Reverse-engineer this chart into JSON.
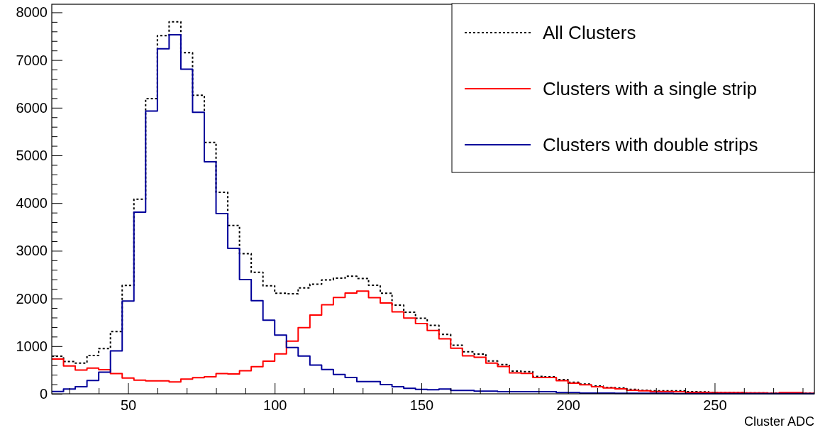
{
  "chart_data": {
    "type": "histogram",
    "xlabel": "Cluster ADC",
    "bins": [
      24,
      28,
      32,
      36,
      40,
      44,
      48,
      52,
      56,
      60,
      64,
      68,
      72,
      76,
      80,
      84,
      88,
      92,
      96,
      100,
      104,
      108,
      112,
      116,
      120,
      124,
      128,
      132,
      136,
      140,
      144,
      148,
      152,
      156,
      160,
      164,
      168,
      172,
      176,
      180,
      184,
      188,
      192,
      196,
      200,
      204,
      208,
      212,
      216,
      220,
      224,
      228,
      232,
      236,
      240,
      244,
      248,
      252,
      256,
      260,
      264,
      268,
      272,
      276,
      280,
      284
    ],
    "series": [
      {
        "name": "All Clusters",
        "color": "#000000",
        "line_style": "dotted",
        "values": [
          787,
          678,
          643,
          802,
          950,
          1307,
          2272,
          4080,
          6190,
          7510,
          7800,
          7156,
          6260,
          5270,
          4226,
          3530,
          2940,
          2550,
          2267,
          2110,
          2100,
          2220,
          2300,
          2390,
          2425,
          2465,
          2420,
          2277,
          2110,
          1860,
          1713,
          1584,
          1435,
          1247,
          1020,
          881,
          832,
          688,
          614,
          475,
          465,
          366,
          356,
          297,
          240,
          203,
          163,
          134,
          124,
          94,
          74,
          64,
          64,
          64,
          45,
          40,
          30,
          25,
          25,
          20,
          20,
          15,
          15,
          15,
          15
        ]
      },
      {
        "name": "Clusters with a single strip",
        "color": "#ff0000",
        "line_style": "solid",
        "values": [
          728,
          584,
          500,
          540,
          505,
          425,
          332,
          287,
          272,
          272,
          248,
          307,
          337,
          356,
          425,
          416,
          485,
          569,
          683,
          837,
          1104,
          1386,
          1653,
          1866,
          2020,
          2114,
          2153,
          2015,
          1906,
          1718,
          1589,
          1475,
          1327,
          1153,
          955,
          797,
          767,
          643,
          574,
          440,
          426,
          342,
          342,
          277,
          223,
          188,
          149,
          124,
          104,
          74,
          64,
          50,
          50,
          45,
          30,
          30,
          25,
          25,
          25,
          20,
          20,
          10,
          25,
          25,
          10
        ]
      },
      {
        "name": "Clusters with double strips",
        "color": "#00009a",
        "line_style": "solid",
        "values": [
          50,
          100,
          150,
          280,
          455,
          900,
          1945,
          3810,
          5930,
          7236,
          7530,
          6810,
          5905,
          4865,
          3780,
          3050,
          2395,
          1955,
          1545,
          1233,
          970,
          792,
          604,
          510,
          406,
          342,
          257,
          257,
          193,
          149,
          114,
          94,
          84,
          99,
          69,
          69,
          54,
          54,
          45,
          45,
          45,
          45,
          45,
          25,
          25,
          15,
          15,
          15,
          10,
          10,
          10,
          10,
          10,
          5,
          5,
          5,
          5,
          5,
          5,
          5,
          5,
          5,
          5,
          5,
          5
        ]
      }
    ],
    "xlim": [
      24,
      284
    ],
    "xticks": [
      {
        "value": 30,
        "label": null
      },
      {
        "value": 40,
        "label": null
      },
      50,
      {
        "value": 60,
        "label": null
      },
      {
        "value": 70,
        "label": null
      },
      {
        "value": 80,
        "label": null
      },
      {
        "value": 90,
        "label": null
      },
      100,
      {
        "value": 110,
        "label": null
      },
      {
        "value": 120,
        "label": null
      },
      {
        "value": 130,
        "label": null
      },
      {
        "value": 140,
        "label": null
      },
      150,
      {
        "value": 160,
        "label": null
      },
      {
        "value": 170,
        "label": null
      },
      {
        "value": 180,
        "label": null
      },
      {
        "value": 190,
        "label": null
      },
      200,
      {
        "value": 210,
        "label": null
      },
      {
        "value": 220,
        "label": null
      },
      {
        "value": 230,
        "label": null
      },
      {
        "value": 240,
        "label": null
      },
      250,
      {
        "value": 260,
        "label": null
      },
      {
        "value": 270,
        "label": null
      },
      {
        "value": 280,
        "label": null
      }
    ],
    "ylim": [
      0,
      8170
    ],
    "yticks": [
      0,
      {
        "value": 200,
        "label": null
      },
      {
        "value": 400,
        "label": null
      },
      {
        "value": 600,
        "label": null
      },
      {
        "value": 800,
        "label": null
      },
      1000,
      {
        "value": 1200,
        "label": null
      },
      {
        "value": 1400,
        "label": null
      },
      {
        "value": 1600,
        "label": null
      },
      {
        "value": 1800,
        "label": null
      },
      2000,
      {
        "value": 2200,
        "label": null
      },
      {
        "value": 2400,
        "label": null
      },
      {
        "value": 2600,
        "label": null
      },
      {
        "value": 2800,
        "label": null
      },
      3000,
      {
        "value": 3200,
        "label": null
      },
      {
        "value": 3400,
        "label": null
      },
      {
        "value": 3600,
        "label": null
      },
      {
        "value": 3800,
        "label": null
      },
      4000,
      {
        "value": 4200,
        "label": null
      },
      {
        "value": 4400,
        "label": null
      },
      {
        "value": 4600,
        "label": null
      },
      {
        "value": 4800,
        "label": null
      },
      5000,
      {
        "value": 5200,
        "label": null
      },
      {
        "value": 5400,
        "label": null
      },
      {
        "value": 5600,
        "label": null
      },
      {
        "value": 5800,
        "label": null
      },
      6000,
      {
        "value": 6200,
        "label": null
      },
      {
        "value": 6400,
        "label": null
      },
      {
        "value": 6600,
        "label": null
      },
      {
        "value": 6800,
        "label": null
      },
      7000,
      {
        "value": 7200,
        "label": null
      },
      {
        "value": 7400,
        "label": null
      },
      {
        "value": 7600,
        "label": null
      },
      {
        "value": 7800,
        "label": null
      },
      8000
    ],
    "grid": false,
    "legend": "top right"
  }
}
